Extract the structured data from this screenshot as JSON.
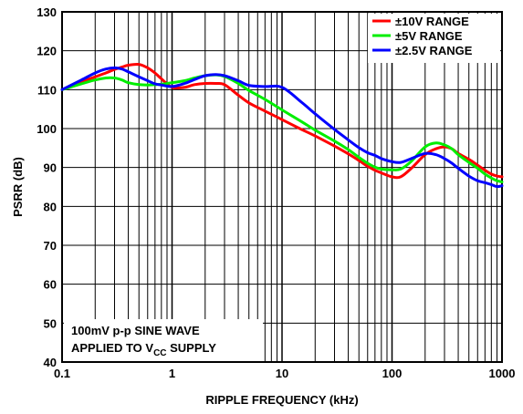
{
  "chart_data": {
    "type": "line",
    "xlabel": "RIPPLE FREQUENCY (kHz)",
    "ylabel": "PSRR (dB)",
    "x_scale": "log",
    "xlim": [
      0.1,
      1000
    ],
    "ylim": [
      40,
      130
    ],
    "grid": true,
    "x_ticks": [
      "0.1",
      "1",
      "10",
      "100",
      "1000"
    ],
    "y_ticks": [
      "40",
      "50",
      "60",
      "70",
      "80",
      "90",
      "100",
      "110",
      "120",
      "130"
    ],
    "legend_position": "top-right",
    "annotation": {
      "line1": "100mV p-p SINE WAVE",
      "line2_prefix": "APPLIED TO V",
      "line2_sub": "CC",
      "line2_suffix": " SUPPLY"
    },
    "series": [
      {
        "name": "±10V RANGE",
        "color": "#ff0000",
        "x": [
          0.1,
          0.15,
          0.2,
          0.25,
          0.3,
          0.35,
          0.4,
          0.5,
          0.6,
          0.7,
          0.8,
          1,
          1.3,
          1.6,
          2,
          2.5,
          3,
          4,
          5,
          7,
          10,
          15,
          20,
          30,
          40,
          50,
          60,
          70,
          80,
          100,
          120,
          150,
          200,
          250,
          300,
          350,
          400,
          500,
          600,
          700,
          800,
          900,
          1000
        ],
        "y": [
          110,
          112,
          113.3,
          114.3,
          115.2,
          115.8,
          116.3,
          116.5,
          115.6,
          114.3,
          112.8,
          110.6,
          110.6,
          111.3,
          111.6,
          111.6,
          111.3,
          108.6,
          106.6,
          104.5,
          102.3,
          99.8,
          98.1,
          95.5,
          93.5,
          91.8,
          90.3,
          89.3,
          88.6,
          87.6,
          87.6,
          89.8,
          93.3,
          94.8,
          95.3,
          94.8,
          93.6,
          92.1,
          90.6,
          89.3,
          88.3,
          87.8,
          87.6
        ]
      },
      {
        "name": "±5V RANGE",
        "color": "#00ee00",
        "x": [
          0.1,
          0.15,
          0.2,
          0.25,
          0.3,
          0.35,
          0.4,
          0.5,
          0.6,
          0.7,
          0.8,
          1,
          1.3,
          1.6,
          2,
          2.5,
          3,
          4,
          5,
          7,
          10,
          15,
          20,
          30,
          40,
          50,
          60,
          70,
          80,
          100,
          120,
          150,
          200,
          250,
          300,
          350,
          400,
          500,
          600,
          700,
          800,
          900,
          1000
        ],
        "y": [
          110,
          111.5,
          112.5,
          113,
          113,
          112.5,
          111.8,
          111.3,
          111.2,
          111.3,
          111.4,
          111.8,
          112.3,
          113,
          113.6,
          113.8,
          113.4,
          111.6,
          109.8,
          107.5,
          104.8,
          101.8,
          99.6,
          96.8,
          94.6,
          92.6,
          91.1,
          90.1,
          89.6,
          89.4,
          89.6,
          91.6,
          95.3,
          96.3,
          95.8,
          94.8,
          93.3,
          91.3,
          89.8,
          88.3,
          87.3,
          86.6,
          86.3
        ]
      },
      {
        "name": "±2.5V RANGE",
        "color": "#0000ff",
        "x": [
          0.1,
          0.15,
          0.2,
          0.25,
          0.3,
          0.35,
          0.4,
          0.5,
          0.6,
          0.7,
          0.8,
          1,
          1.3,
          1.6,
          2,
          2.5,
          3,
          4,
          5,
          7,
          10,
          15,
          20,
          30,
          40,
          50,
          60,
          70,
          80,
          100,
          120,
          150,
          200,
          250,
          300,
          350,
          400,
          500,
          600,
          700,
          800,
          900,
          1000
        ],
        "y": [
          110,
          112.5,
          114.3,
          115.3,
          115.6,
          115.3,
          114.6,
          113.3,
          112.3,
          111.5,
          111.2,
          110.8,
          111.6,
          112.6,
          113.6,
          113.9,
          113.6,
          112.3,
          111.1,
          110.8,
          110.6,
          106.8,
          103.8,
          99.8,
          97.1,
          95.1,
          93.8,
          93.1,
          92.3,
          91.5,
          91.3,
          92.3,
          93.6,
          93.3,
          92.3,
          91.1,
          89.8,
          87.8,
          86.6,
          86.1,
          85.6,
          85.1,
          85.3
        ]
      }
    ]
  }
}
